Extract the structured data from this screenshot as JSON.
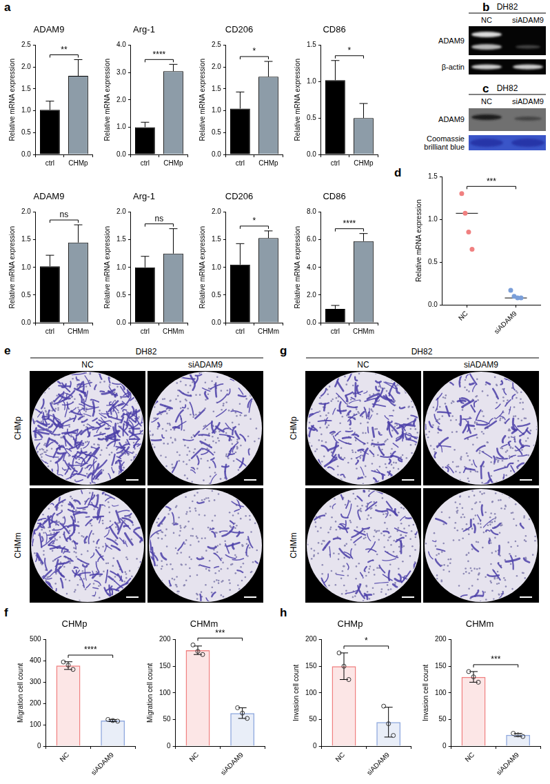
{
  "chart_data": [
    {
      "type": "bar",
      "title": "ADAM9",
      "y_label": "Relative mRNA expression",
      "categories": [
        "ctrl",
        "CHMp"
      ],
      "values": [
        1.02,
        1.8
      ],
      "errors": [
        0.2,
        0.37
      ],
      "colors": [
        "#000000",
        "#8d9ca8"
      ],
      "ylim": [
        0,
        2.5
      ],
      "yticks": [
        {
          "value": 0,
          "label": "0.0"
        },
        0.5,
        {
          "value": 1,
          "label": "1.0"
        },
        1.5,
        {
          "value": 2,
          "label": "2.0"
        },
        2.5
      ],
      "grid": false,
      "annotation": "**"
    },
    {
      "type": "bar",
      "title": "Arg-1",
      "y_label": "Relative mRNA expression",
      "categories": [
        "ctrl",
        "CHMp"
      ],
      "values": [
        1.0,
        3.05
      ],
      "errors": [
        0.18,
        0.25
      ],
      "colors": [
        "#000000",
        "#8d9ca8"
      ],
      "ylim": [
        0,
        4
      ],
      "yticks": [
        {
          "value": 0,
          "label": "0.0"
        },
        {
          "value": 1,
          "label": "1.0"
        },
        {
          "value": 2,
          "label": "2.0"
        },
        {
          "value": 3,
          "label": "3.0"
        },
        {
          "value": 4,
          "label": "4.0"
        }
      ],
      "grid": false,
      "annotation": "****"
    },
    {
      "type": "bar",
      "title": "CD206",
      "y_label": "Relative mRNA expression",
      "categories": [
        "ctrl",
        "CHMp"
      ],
      "values": [
        1.05,
        1.78
      ],
      "errors": [
        0.38,
        0.35
      ],
      "colors": [
        "#000000",
        "#8d9ca8"
      ],
      "ylim": [
        0,
        2.5
      ],
      "yticks": [
        {
          "value": 0,
          "label": "0.0"
        },
        0.5,
        {
          "value": 1,
          "label": "1.0"
        },
        1.5,
        {
          "value": 2,
          "label": "2.0"
        },
        2.5
      ],
      "grid": false,
      "annotation": "*"
    },
    {
      "type": "bar",
      "title": "CD86",
      "y_label": "Relative mRNA expression",
      "categories": [
        "ctrl",
        "CHMp"
      ],
      "values": [
        1.02,
        0.5
      ],
      "errors": [
        0.27,
        0.2
      ],
      "colors": [
        "#000000",
        "#8d9ca8"
      ],
      "ylim": [
        0,
        1.5
      ],
      "yticks": [
        {
          "value": 0,
          "label": "0.0"
        },
        0.5,
        {
          "value": 1,
          "label": "1.0"
        },
        1.5
      ],
      "grid": false,
      "annotation": "*"
    },
    {
      "type": "bar",
      "title": "ADAM9",
      "y_label": "Relative mRNA expression",
      "categories": [
        "ctrl",
        "CHMm"
      ],
      "values": [
        1.02,
        1.45
      ],
      "errors": [
        0.2,
        0.32
      ],
      "colors": [
        "#000000",
        "#8d9ca8"
      ],
      "ylim": [
        0,
        2
      ],
      "yticks": [
        {
          "value": 0,
          "label": "0.0"
        },
        0.5,
        {
          "value": 1,
          "label": "1.0"
        },
        1.5,
        {
          "value": 2,
          "label": "2.0"
        }
      ],
      "grid": false,
      "annotation": "ns"
    },
    {
      "type": "bar",
      "title": "Arg-1",
      "y_label": "Relative mRNA expression",
      "categories": [
        "ctrl",
        "CHMm"
      ],
      "values": [
        1.0,
        1.25
      ],
      "errors": [
        0.2,
        0.45
      ],
      "colors": [
        "#000000",
        "#8d9ca8"
      ],
      "ylim": [
        0,
        2
      ],
      "yticks": [
        {
          "value": 0,
          "label": "0.0"
        },
        0.5,
        {
          "value": 1,
          "label": "1.0"
        },
        1.5,
        {
          "value": 2,
          "label": "2.0"
        }
      ],
      "grid": false,
      "annotation": "ns"
    },
    {
      "type": "bar",
      "title": "CD206",
      "y_label": "Relative mRNA expression",
      "categories": [
        "ctrl",
        "CHMm"
      ],
      "values": [
        1.05,
        1.53
      ],
      "errors": [
        0.38,
        0.13
      ],
      "colors": [
        "#000000",
        "#8d9ca8"
      ],
      "ylim": [
        0,
        2
      ],
      "yticks": [
        {
          "value": 0,
          "label": "0.0"
        },
        0.5,
        {
          "value": 1,
          "label": "1.0"
        },
        1.5,
        {
          "value": 2,
          "label": "2.0"
        }
      ],
      "grid": false,
      "annotation": "*"
    },
    {
      "type": "bar",
      "title": "CD86",
      "y_label": "Relative mRNA expression",
      "categories": [
        "ctrl",
        "CHMm"
      ],
      "values": [
        1.0,
        5.9
      ],
      "errors": [
        0.25,
        0.55
      ],
      "colors": [
        "#000000",
        "#8d9ca8"
      ],
      "ylim": [
        0,
        8
      ],
      "yticks": [
        {
          "value": 0,
          "label": "0.0"
        },
        {
          "value": 2,
          "label": "2.0"
        },
        {
          "value": 4,
          "label": "4.0"
        },
        {
          "value": 6,
          "label": "6.0"
        },
        {
          "value": 8,
          "label": "8.0"
        }
      ],
      "grid": false,
      "annotation": "****"
    },
    {
      "type": "scatter",
      "y_label": "Relative mRNA expression",
      "categories": [
        "NC",
        "siADAM9"
      ],
      "points": [
        [
          1.3,
          1.07,
          0.85,
          0.65
        ],
        [
          0.17,
          0.1,
          0.08,
          0.08
        ]
      ],
      "medians": [
        1.07,
        0.08
      ],
      "colors": [
        "#f08080",
        "#7b9fd9"
      ],
      "ylim": [
        0,
        1.5
      ],
      "yticks": [
        {
          "value": 0,
          "label": "0.0"
        },
        0.5,
        {
          "value": 1,
          "label": "1.0"
        },
        1.5
      ],
      "grid": false,
      "annotation": "***"
    },
    {
      "type": "bar",
      "title": "CHMp",
      "y_label": "Migration cell count",
      "categories": [
        "NC",
        "siADAM9"
      ],
      "values": [
        378,
        120
      ],
      "errors": [
        18,
        5
      ],
      "points": [
        [
          395,
          380,
          360
        ],
        [
          125,
          120,
          117
        ]
      ],
      "colors": [
        "#f08080",
        "#8fa8de"
      ],
      "ylim": [
        0,
        500
      ],
      "yticks": [
        0,
        100,
        200,
        300,
        400,
        500
      ],
      "grid": false,
      "annotation": "****"
    },
    {
      "type": "bar",
      "title": "CHMm",
      "y_label": "Migration cell count",
      "categories": [
        "NC",
        "siADAM9"
      ],
      "values": [
        180,
        62
      ],
      "errors": [
        8,
        10
      ],
      "points": [
        [
          190,
          178,
          172
        ],
        [
          72,
          62,
          52
        ]
      ],
      "colors": [
        "#f08080",
        "#8fa8de"
      ],
      "ylim": [
        0,
        200
      ],
      "yticks": [
        0,
        50,
        100,
        150,
        200
      ],
      "grid": false,
      "annotation": "***"
    },
    {
      "type": "bar",
      "title": "CHMp",
      "y_label": "Invasion cell count",
      "categories": [
        "NC",
        "siADAM9"
      ],
      "values": [
        150,
        45
      ],
      "errors": [
        25,
        28
      ],
      "points": [
        [
          175,
          150,
          125
        ],
        [
          75,
          42,
          20
        ]
      ],
      "colors": [
        "#f08080",
        "#8fa8de"
      ],
      "ylim": [
        0,
        200
      ],
      "yticks": [
        0,
        50,
        100,
        150,
        200
      ],
      "grid": false,
      "annotation": "*"
    },
    {
      "type": "bar",
      "title": "CHMm",
      "y_label": "Invasion cell count",
      "categories": [
        "NC",
        "siADAM9"
      ],
      "values": [
        130,
        21
      ],
      "errors": [
        10,
        3
      ],
      "points": [
        [
          140,
          130,
          120
        ],
        [
          24,
          21,
          18
        ]
      ],
      "colors": [
        "#f08080",
        "#8fa8de"
      ],
      "ylim": [
        0,
        200
      ],
      "yticks": [
        0,
        50,
        100,
        150,
        200
      ],
      "grid": false,
      "annotation": "***"
    }
  ],
  "panel_letters": [
    "a",
    "b",
    "c",
    "d",
    "e",
    "f",
    "g",
    "h"
  ],
  "blots": [
    {
      "header": "DH82",
      "lanes": [
        "NC",
        "siADAM9"
      ],
      "rows": [
        "ADAM9",
        "β-actin"
      ]
    },
    {
      "header": "DH82",
      "lanes": [
        "NC",
        "siADAM9"
      ],
      "rows": [
        "ADAM9",
        "Coomassie brilliant blue"
      ]
    }
  ],
  "micrographs": [
    {
      "header": "DH82",
      "columns": [
        "NC",
        "siADAM9"
      ],
      "rows": [
        "CHMp",
        "CHMm"
      ]
    },
    {
      "header": "DH82",
      "columns": [
        "NC",
        "siADAM9"
      ],
      "rows": [
        "CHMp",
        "CHMm"
      ]
    }
  ]
}
